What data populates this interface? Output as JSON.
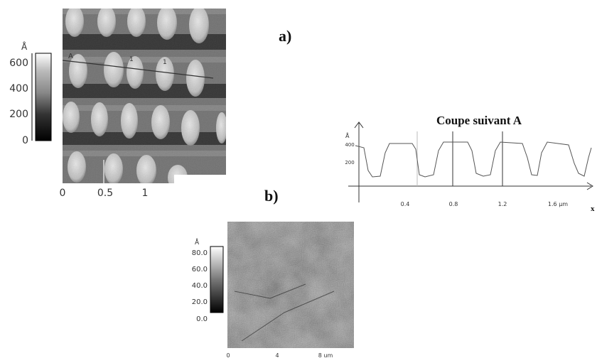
{
  "figure_a": {
    "label": "a)",
    "image": {
      "colorbar": {
        "unit": "Å",
        "ticks": [
          "600",
          "400",
          "200",
          "0"
        ]
      },
      "x_ticks": [
        "0",
        "0.5",
        "1"
      ],
      "markers": [
        "A",
        "1",
        "1"
      ]
    },
    "profile": {
      "title": "Coupe suivant A",
      "y_unit": "Å",
      "y_ticks": [
        "400",
        "200"
      ],
      "x_ticks": [
        "0.4",
        "0.8",
        "1.2",
        "1.6 µm"
      ],
      "x_axis": "x"
    }
  },
  "figure_b": {
    "label": "b)",
    "image": {
      "colorbar": {
        "unit": "Å",
        "ticks": [
          "80.0",
          "60.0",
          "40.0",
          "20.0",
          "0.0"
        ]
      },
      "x_ticks": [
        "0",
        "4",
        "8 um"
      ]
    }
  }
}
